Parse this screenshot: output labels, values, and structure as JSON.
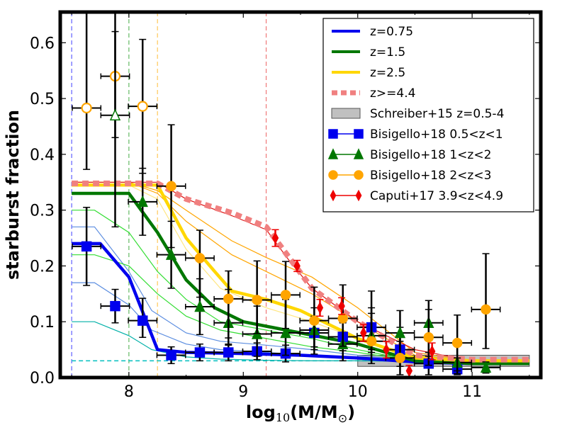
{
  "chart_data": {
    "type": "line",
    "title": "",
    "xlabel_main": "log",
    "xlabel_sub": "10",
    "xlabel_rest": "(M/M",
    "xlabel_sym": "⊙",
    "xlabel_close": ")",
    "ylabel": "starburst fraction",
    "xlim": [
      7.4,
      11.6
    ],
    "ylim": [
      0.0,
      0.655
    ],
    "xticks": [
      8,
      9,
      10,
      11
    ],
    "yticks": [
      0.0,
      0.1,
      0.2,
      0.3,
      0.4,
      0.5,
      0.6
    ],
    "xtick_labels": [
      "8",
      "9",
      "10",
      "11"
    ],
    "ytick_labels": [
      "0.0",
      "0.1",
      "0.2",
      "0.3",
      "0.4",
      "0.5",
      "0.6"
    ],
    "legend_position": "top-right",
    "colors": {
      "blue": "#0000ee",
      "green": "#007700",
      "gold": "#ffd700",
      "pink": "#f08080",
      "orange": "#ffa500",
      "red": "#ee0000",
      "band": "#c0c0c0"
    },
    "vlines": [
      {
        "x": 7.5,
        "color": "#6b6bff"
      },
      {
        "x": 8.0,
        "color": "#6fbf6f"
      },
      {
        "x": 8.25,
        "color": "#ffcc66"
      },
      {
        "x": 9.2,
        "color": "#f08080"
      }
    ],
    "hline": {
      "y": 0.03,
      "x": [
        7.5,
        11.5
      ],
      "color": "#00bfbf"
    },
    "schreiber_band": {
      "x": [
        10.0,
        11.5
      ],
      "y": [
        0.02,
        0.04
      ]
    },
    "thin_curves": [
      {
        "color": "#00b0a8",
        "x": [
          7.5,
          7.7,
          8.0,
          8.2,
          8.5,
          8.8,
          9.2,
          9.6,
          10.0,
          10.5,
          11.0,
          11.5
        ],
        "y": [
          0.1,
          0.1,
          0.075,
          0.05,
          0.037,
          0.033,
          0.031,
          0.03,
          0.03,
          0.029,
          0.028,
          0.028
        ]
      },
      {
        "color": "#5b8de0",
        "x": [
          7.5,
          7.7,
          8.0,
          8.2,
          8.5,
          8.8,
          9.2,
          9.6,
          10.0,
          10.5,
          11.0,
          11.5
        ],
        "y": [
          0.17,
          0.17,
          0.13,
          0.085,
          0.06,
          0.05,
          0.045,
          0.04,
          0.035,
          0.03,
          0.028,
          0.028
        ]
      },
      {
        "color": "#5b8de0",
        "x": [
          7.5,
          7.7,
          8.0,
          8.2,
          8.5,
          8.8,
          9.2,
          9.6,
          10.0,
          10.5,
          11.0,
          11.5
        ],
        "y": [
          0.27,
          0.27,
          0.19,
          0.12,
          0.08,
          0.065,
          0.058,
          0.05,
          0.04,
          0.03,
          0.028,
          0.028
        ]
      },
      {
        "color": "#33dd33",
        "x": [
          7.5,
          7.7,
          8.0,
          8.25,
          8.5,
          8.8,
          9.2,
          9.6,
          10.0,
          10.5,
          11.0,
          11.5
        ],
        "y": [
          0.3,
          0.3,
          0.26,
          0.19,
          0.14,
          0.1,
          0.085,
          0.07,
          0.05,
          0.03,
          0.028,
          0.028
        ]
      },
      {
        "color": "#33dd33",
        "x": [
          7.5,
          7.7,
          8.0,
          8.25,
          8.5,
          8.8,
          9.2,
          9.6,
          10.0,
          10.5,
          11.0,
          11.5
        ],
        "y": [
          0.22,
          0.22,
          0.2,
          0.15,
          0.11,
          0.085,
          0.07,
          0.055,
          0.045,
          0.03,
          0.028,
          0.028
        ]
      },
      {
        "color": "#ffe680",
        "x": [
          7.5,
          8.0,
          8.25,
          8.5,
          8.8,
          9.2,
          9.6,
          10.0,
          10.5,
          11.0,
          11.5
        ],
        "y": [
          0.345,
          0.345,
          0.32,
          0.23,
          0.16,
          0.125,
          0.1,
          0.07,
          0.035,
          0.03,
          0.03
        ]
      },
      {
        "color": "#ffa500",
        "x": [
          7.5,
          8.0,
          8.25,
          8.5,
          8.9,
          9.2,
          9.6,
          10.0,
          10.5,
          11.0,
          11.5
        ],
        "y": [
          0.35,
          0.35,
          0.33,
          0.28,
          0.22,
          0.19,
          0.15,
          0.1,
          0.04,
          0.03,
          0.03
        ]
      },
      {
        "color": "#ffa500",
        "x": [
          7.5,
          8.0,
          8.25,
          8.5,
          8.9,
          9.2,
          9.6,
          10.0,
          10.5,
          11.0,
          11.5
        ],
        "y": [
          0.35,
          0.35,
          0.335,
          0.3,
          0.245,
          0.215,
          0.18,
          0.125,
          0.045,
          0.03,
          0.03
        ]
      },
      {
        "color": "#dd1111",
        "x": [
          7.5,
          8.0,
          8.25,
          8.5,
          8.9,
          9.2,
          9.4,
          9.6,
          10.0,
          10.5,
          11.0,
          11.5
        ],
        "y": [
          0.35,
          0.35,
          0.35,
          0.32,
          0.29,
          0.265,
          0.21,
          0.16,
          0.1,
          0.05,
          0.03,
          0.03
        ]
      }
    ],
    "series": [
      {
        "name": "z=0.75",
        "color": "#0000ee",
        "width": 4.5,
        "dash": "",
        "x": [
          7.5,
          7.75,
          8.0,
          8.25,
          8.5,
          9.0,
          9.5,
          10.0,
          10.5,
          11.0,
          11.5
        ],
        "y": [
          0.24,
          0.24,
          0.18,
          0.05,
          0.045,
          0.043,
          0.04,
          0.035,
          0.028,
          0.025,
          0.025
        ]
      },
      {
        "name": "z=1.5",
        "color": "#007700",
        "width": 4.5,
        "dash": "",
        "x": [
          7.5,
          7.75,
          8.0,
          8.25,
          8.5,
          8.75,
          9.0,
          9.5,
          10.0,
          10.5,
          11.0,
          11.5
        ],
        "y": [
          0.33,
          0.33,
          0.33,
          0.26,
          0.175,
          0.125,
          0.1,
          0.08,
          0.06,
          0.03,
          0.025,
          0.025
        ]
      },
      {
        "name": "z=2.5",
        "color": "#ffd700",
        "width": 4.5,
        "dash": "",
        "x": [
          7.5,
          8.0,
          8.25,
          8.5,
          8.75,
          8.9,
          9.2,
          9.5,
          10.0,
          10.5,
          11.0,
          11.5
        ],
        "y": [
          0.345,
          0.345,
          0.345,
          0.25,
          0.19,
          0.155,
          0.14,
          0.12,
          0.07,
          0.035,
          0.03,
          0.03
        ]
      },
      {
        "name": "z>=4.4",
        "color": "#f08080",
        "width": 8,
        "dash": "9,6",
        "x": [
          7.5,
          8.0,
          8.25,
          8.5,
          8.9,
          9.2,
          9.4,
          9.6,
          10.0,
          10.5,
          11.0,
          11.5
        ],
        "y": [
          0.348,
          0.348,
          0.348,
          0.32,
          0.295,
          0.27,
          0.215,
          0.16,
          0.1,
          0.04,
          0.032,
          0.032
        ]
      }
    ],
    "points": [
      {
        "name": "Bisigello+18 0.5<z<1",
        "color": "#0000ee",
        "marker": "square",
        "filled": true,
        "x": [
          7.63,
          7.88,
          8.12,
          8.37,
          8.62,
          8.87,
          9.12,
          9.37,
          9.62,
          9.87,
          10.12,
          10.37,
          10.62,
          10.87
        ],
        "y": [
          0.235,
          0.128,
          0.102,
          0.04,
          0.045,
          0.045,
          0.047,
          0.043,
          0.08,
          0.073,
          0.09,
          0.05,
          0.025,
          0.015
        ],
        "xerr": 0.125,
        "yerr_lo": [
          0.07,
          0.03,
          0.03,
          0.015,
          0.015,
          0.015,
          0.015,
          0.015,
          0.03,
          0.025,
          0.04,
          0.03,
          0.02,
          0.01
        ],
        "yerr_hi": [
          0.07,
          0.03,
          0.04,
          0.015,
          0.015,
          0.015,
          0.015,
          0.015,
          0.03,
          0.025,
          0.065,
          0.04,
          0.02,
          0.02
        ]
      },
      {
        "name": "Bisigello+18 1<z<2",
        "color": "#007700",
        "marker": "triangle",
        "filled": true,
        "x": [
          8.12,
          8.37,
          8.62,
          8.87,
          9.12,
          9.37,
          9.62,
          9.87,
          10.12,
          10.37,
          10.62,
          10.87,
          11.12
        ],
        "y": [
          0.315,
          0.22,
          0.127,
          0.098,
          0.078,
          0.08,
          0.085,
          0.06,
          0.075,
          0.08,
          0.098,
          0.027,
          0.018
        ],
        "xerr": 0.125,
        "yerr_lo": [
          0.06,
          0.06,
          0.05,
          0.04,
          0.04,
          0.04,
          0.03,
          0.03,
          0.03,
          0.06,
          0.06,
          0.02,
          0.01
        ],
        "yerr_hi": [
          0.06,
          0.06,
          0.05,
          0.06,
          0.05,
          0.06,
          0.04,
          0.04,
          0.05,
          0.04,
          0.04,
          0.03,
          0.01
        ]
      },
      {
        "name": "Bisigello+18 2<z<3",
        "color": "#ffa500",
        "marker": "circle",
        "filled": true,
        "x": [
          8.37,
          8.62,
          8.87,
          9.12,
          9.37,
          9.62,
          9.87,
          10.12,
          10.37,
          10.62,
          10.87,
          11.12
        ],
        "y": [
          0.343,
          0.214,
          0.141,
          0.139,
          0.148,
          0.102,
          0.106,
          0.065,
          0.035,
          0.072,
          0.062,
          0.122
        ],
        "xerr": 0.125,
        "yerr_lo": [
          0.11,
          0.07,
          0.07,
          0.06,
          0.06,
          0.06,
          0.05,
          0.04,
          0.03,
          0.05,
          0.05,
          0.07
        ],
        "yerr_hi": [
          0.11,
          0.05,
          0.05,
          0.07,
          0.06,
          0.06,
          0.06,
          0.05,
          0.03,
          0.05,
          0.05,
          0.1
        ]
      },
      {
        "name": "Caputi+17 3.9<z<4.9",
        "color": "#ee0000",
        "marker": "diamond",
        "filled": true,
        "x": [
          9.28,
          9.47,
          9.67,
          9.86,
          10.05,
          10.25,
          10.45,
          10.65
        ],
        "y": [
          0.25,
          0.2,
          0.125,
          0.128,
          0.08,
          0.05,
          0.012,
          0.047
        ],
        "xerr": 0,
        "yerr_lo": [
          0.015,
          0.01,
          0.015,
          0.015,
          0.015,
          0.015,
          0.01,
          0.015
        ],
        "yerr_hi": [
          0.015,
          0.01,
          0.015,
          0.015,
          0.015,
          0.015,
          0.01,
          0.015
        ]
      }
    ],
    "open_points": [
      {
        "color": "#ffa500",
        "marker": "circle",
        "x": [
          7.63,
          7.88,
          8.12
        ],
        "y": [
          0.483,
          0.54,
          0.486
        ],
        "xerr": 0.125,
        "yerr_lo": [
          0.11,
          0.11,
          0.12
        ],
        "yerr_hi": [
          0.2,
          0.08,
          0.12
        ]
      },
      {
        "color": "#007700",
        "marker": "triangle",
        "x": [
          7.88
        ],
        "y": [
          0.47
        ],
        "xerr": 0.125,
        "yerr_lo": [
          0.2
        ],
        "yerr_hi": [
          0.2
        ]
      }
    ],
    "legend": {
      "lines": [
        {
          "label": "z=0.75",
          "color": "#0000ee",
          "style": "line"
        },
        {
          "label": "z=1.5",
          "color": "#007700",
          "style": "line"
        },
        {
          "label": "z=2.5",
          "color": "#ffd700",
          "style": "line"
        },
        {
          "label": "z>=4.4",
          "color": "#f08080",
          "style": "dashed"
        },
        {
          "label": "Schreiber+15 z=0.5-4",
          "color": "#c0c0c0",
          "style": "patch"
        },
        {
          "label": "Bisigello+18 0.5<z<1",
          "color": "#0000ee",
          "style": "square"
        },
        {
          "label": "Bisigello+18 1<z<2",
          "color": "#007700",
          "style": "triangle"
        },
        {
          "label": "Bisigello+18 2<z<3",
          "color": "#ffa500",
          "style": "circle"
        },
        {
          "label": "Caputi+17 3.9<z<4.9",
          "color": "#ee0000",
          "style": "diamond"
        }
      ]
    }
  }
}
